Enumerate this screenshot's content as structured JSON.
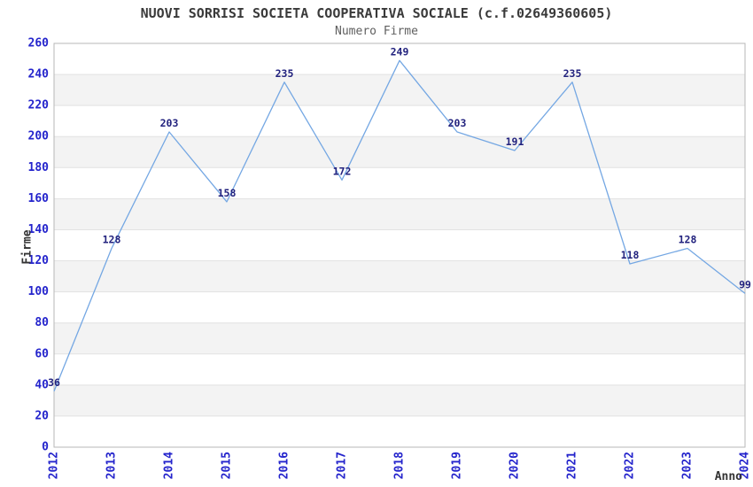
{
  "chart_data": {
    "type": "line",
    "title": "NUOVI SORRISI SOCIETA COOPERATIVA SOCIALE (c.f.02649360605)",
    "subtitle": "Numero Firme",
    "xlabel": "Anno",
    "ylabel": "Firme",
    "categories": [
      "2012",
      "2013",
      "2014",
      "2015",
      "2016",
      "2017",
      "2018",
      "2019",
      "2020",
      "2021",
      "2022",
      "2023",
      "2024"
    ],
    "values": [
      36,
      128,
      203,
      158,
      235,
      172,
      249,
      203,
      191,
      235,
      118,
      128,
      99
    ],
    "ylim": [
      0,
      260
    ],
    "ytick_step": 20,
    "grid": "horizontal-only",
    "legend": "none",
    "point_labels_shown": true,
    "colors": {
      "line": "#74a7e3",
      "data_label": "#22227e",
      "tick_label": "#2424cc",
      "band_fill": "#f3f3f3",
      "gridline": "#e2e2e2",
      "plot_border": "#b7b7b7",
      "title_text": "#3a3a3a",
      "subtitle_text": "#5f5f5f",
      "axis_title_text": "#333333",
      "background": "#ffffff"
    }
  }
}
